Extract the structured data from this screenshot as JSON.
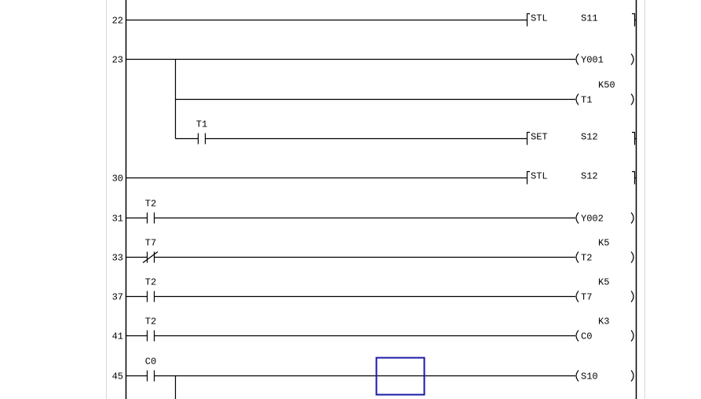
{
  "ladder": {
    "lines": [
      {
        "step": "22",
        "output": {
          "kind": "instruction",
          "op": "STL",
          "operand": "S11"
        }
      },
      {
        "step": "23",
        "output": {
          "kind": "coil",
          "device": "Y001"
        }
      },
      {
        "step": "",
        "branch": true,
        "output": {
          "kind": "coil",
          "device": "T1",
          "setting": "K50"
        }
      },
      {
        "step": "",
        "branch": true,
        "contact": {
          "device": "T1",
          "type": "NO"
        },
        "output": {
          "kind": "instruction",
          "op": "SET",
          "operand": "S12"
        }
      },
      {
        "step": "30",
        "output": {
          "kind": "instruction",
          "op": "STL",
          "operand": "S12"
        }
      },
      {
        "step": "31",
        "contact": {
          "device": "T2",
          "type": "NO"
        },
        "output": {
          "kind": "coil",
          "device": "Y002"
        }
      },
      {
        "step": "33",
        "contact": {
          "device": "T7",
          "type": "NC"
        },
        "output": {
          "kind": "coil",
          "device": "T2",
          "setting": "K5"
        }
      },
      {
        "step": "37",
        "contact": {
          "device": "T2",
          "type": "NO"
        },
        "output": {
          "kind": "coil",
          "device": "T7",
          "setting": "K5"
        }
      },
      {
        "step": "41",
        "contact": {
          "device": "T2",
          "type": "NO"
        },
        "output": {
          "kind": "coil",
          "device": "C0",
          "setting": "K3"
        }
      },
      {
        "step": "45",
        "contact": {
          "device": "C0",
          "type": "NO"
        },
        "branch_down": true,
        "output": {
          "kind": "coil",
          "device": "S10"
        }
      }
    ]
  },
  "colors": {
    "cursor": "#1a1aa6",
    "line": "#000000",
    "guide": "#d8d8d8"
  }
}
